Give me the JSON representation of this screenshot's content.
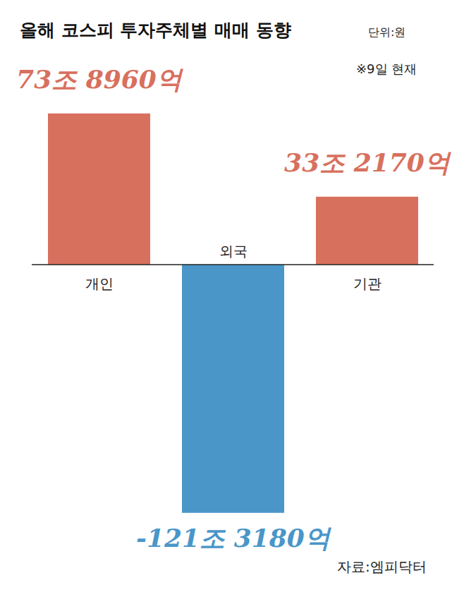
{
  "chart_data": {
    "type": "bar",
    "title": "올해 코스피 투자주체별 매매 동향",
    "subtitle": "단위:원",
    "annotations": [
      "※9일 현재",
      "자료:엠피닥터"
    ],
    "categories": [
      "개인",
      "외국",
      "기관"
    ],
    "values": [
      738960,
      -1213180,
      332170
    ],
    "value_labels": [
      "73조 8960억",
      "-121조 3180억",
      "33조 2170억"
    ],
    "colors": [
      "#d8705e",
      "#4a96c8",
      "#d8705e"
    ],
    "ylim": [
      -1300000,
      800000
    ],
    "data_labels": true,
    "tick_labels": false,
    "grid": false
  }
}
